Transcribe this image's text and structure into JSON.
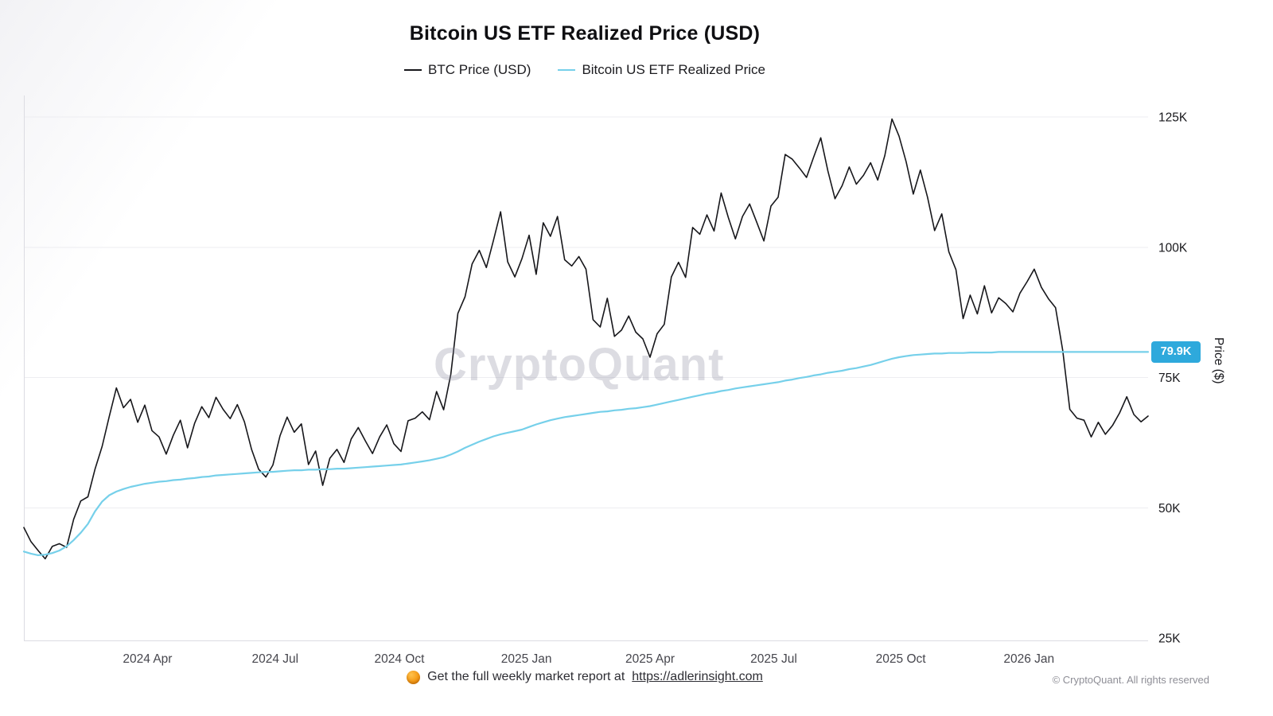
{
  "chart_data": {
    "type": "line",
    "title": "Bitcoin US ETF Realized Price (USD)",
    "ylabel": "Price ($)",
    "ylim": [
      25,
      125
    ],
    "y_unit": "thousand USD",
    "grid": "horizontal",
    "legend_position": "top-center",
    "yticks": [
      {
        "v": 125,
        "label": "125K"
      },
      {
        "v": 100,
        "label": "100K"
      },
      {
        "v": 75,
        "label": "75K"
      },
      {
        "v": 50,
        "label": "50K"
      },
      {
        "v": 25,
        "label": "25K"
      }
    ],
    "xticks": [
      {
        "pos": 0.11,
        "label": "2024 Apr"
      },
      {
        "pos": 0.2235,
        "label": "2024 Jul"
      },
      {
        "pos": 0.334,
        "label": "2024 Oct"
      },
      {
        "pos": 0.447,
        "label": "2025 Jan"
      },
      {
        "pos": 0.557,
        "label": "2025 Apr"
      },
      {
        "pos": 0.667,
        "label": "2025 Jul"
      },
      {
        "pos": 0.78,
        "label": "2025 Oct"
      },
      {
        "pos": 0.894,
        "label": "2026 Jan"
      }
    ],
    "series": [
      {
        "name": "BTC Price (USD)",
        "color": "#17171b",
        "width": 1.6,
        "values": [
          46.2,
          43.5,
          41.8,
          40.2,
          42.6,
          43.1,
          42.4,
          47.8,
          51.3,
          52.1,
          57.4,
          61.8,
          67.5,
          73.0,
          69.2,
          70.8,
          66.4,
          69.7,
          64.8,
          63.6,
          60.3,
          63.9,
          66.8,
          61.5,
          66.2,
          69.4,
          67.3,
          71.2,
          68.9,
          67.1,
          69.8,
          66.5,
          61.2,
          57.4,
          55.9,
          58.2,
          63.8,
          67.4,
          64.5,
          66.1,
          58.3,
          60.9,
          54.3,
          59.5,
          61.2,
          58.7,
          63.2,
          65.4,
          62.8,
          60.4,
          63.6,
          65.9,
          62.3,
          60.8,
          66.7,
          67.2,
          68.4,
          66.9,
          72.3,
          68.8,
          75.6,
          87.3,
          90.5,
          96.8,
          99.4,
          96.1,
          101.3,
          106.8,
          97.2,
          94.3,
          97.8,
          102.3,
          94.8,
          104.7,
          102.1,
          105.9,
          97.6,
          96.4,
          98.2,
          95.8,
          86.1,
          84.7,
          90.2,
          82.9,
          84.1,
          86.8,
          83.7,
          82.4,
          78.9,
          83.4,
          85.2,
          94.3,
          97.1,
          94.2,
          103.8,
          102.5,
          106.2,
          103.1,
          110.4,
          105.7,
          101.6,
          105.9,
          108.3,
          104.8,
          101.2,
          107.9,
          109.6,
          117.8,
          116.9,
          115.2,
          113.4,
          117.3,
          121.0,
          114.6,
          109.3,
          111.8,
          115.4,
          112.1,
          113.8,
          116.2,
          112.9,
          117.6,
          124.6,
          121.3,
          116.4,
          110.2,
          114.8,
          109.6,
          103.2,
          106.4,
          99.1,
          95.7,
          86.3,
          90.8,
          87.2,
          92.6,
          87.4,
          90.3,
          89.2,
          87.6,
          91.2,
          93.4,
          95.8,
          92.3,
          90.1,
          88.4,
          80.2,
          68.9,
          67.2,
          66.8,
          63.6,
          66.4,
          64.1,
          65.8,
          68.2,
          71.3,
          67.9,
          66.5,
          67.6
        ]
      },
      {
        "name": "Bitcoin US ETF Realized Price",
        "color": "#76d0ea",
        "width": 2.2,
        "values": [
          41.6,
          41.2,
          40.9,
          41.0,
          41.3,
          41.8,
          42.6,
          43.8,
          45.2,
          46.9,
          49.3,
          51.2,
          52.4,
          53.1,
          53.6,
          54.0,
          54.3,
          54.6,
          54.8,
          55.0,
          55.1,
          55.3,
          55.4,
          55.6,
          55.7,
          55.9,
          56.0,
          56.2,
          56.3,
          56.4,
          56.5,
          56.6,
          56.7,
          56.8,
          56.9,
          56.9,
          57.0,
          57.1,
          57.2,
          57.2,
          57.3,
          57.3,
          57.4,
          57.4,
          57.5,
          57.5,
          57.6,
          57.7,
          57.8,
          57.9,
          58.0,
          58.1,
          58.2,
          58.3,
          58.5,
          58.7,
          58.9,
          59.1,
          59.4,
          59.7,
          60.2,
          60.8,
          61.5,
          62.1,
          62.7,
          63.2,
          63.7,
          64.1,
          64.4,
          64.7,
          65.0,
          65.5,
          66.0,
          66.4,
          66.8,
          67.1,
          67.4,
          67.6,
          67.8,
          68.0,
          68.2,
          68.4,
          68.5,
          68.7,
          68.8,
          69.0,
          69.1,
          69.3,
          69.5,
          69.8,
          70.1,
          70.4,
          70.7,
          71.0,
          71.3,
          71.6,
          71.9,
          72.1,
          72.4,
          72.6,
          72.9,
          73.1,
          73.3,
          73.5,
          73.7,
          73.9,
          74.1,
          74.4,
          74.6,
          74.9,
          75.1,
          75.4,
          75.6,
          75.9,
          76.1,
          76.3,
          76.6,
          76.8,
          77.1,
          77.4,
          77.8,
          78.2,
          78.6,
          78.9,
          79.1,
          79.3,
          79.4,
          79.5,
          79.6,
          79.6,
          79.7,
          79.7,
          79.7,
          79.8,
          79.8,
          79.8,
          79.8,
          79.9,
          79.9,
          79.9,
          79.9,
          79.9,
          79.9,
          79.9,
          79.9,
          79.9,
          79.9,
          79.9,
          79.9,
          79.9,
          79.9,
          79.9,
          79.9,
          79.9,
          79.9,
          79.9,
          79.9,
          79.9,
          79.9
        ]
      }
    ],
    "badge": {
      "label": "79.9K",
      "value": 79.9,
      "color": "#2ea9dc",
      "text_color": "#ffffff"
    }
  },
  "watermark": "CryptoQuant",
  "footer": {
    "icon": "orange-circle",
    "text": "Get the full weekly market report at",
    "link": "https://adlerinsight.com",
    "copyright": "© CryptoQuant. All rights reserved"
  }
}
